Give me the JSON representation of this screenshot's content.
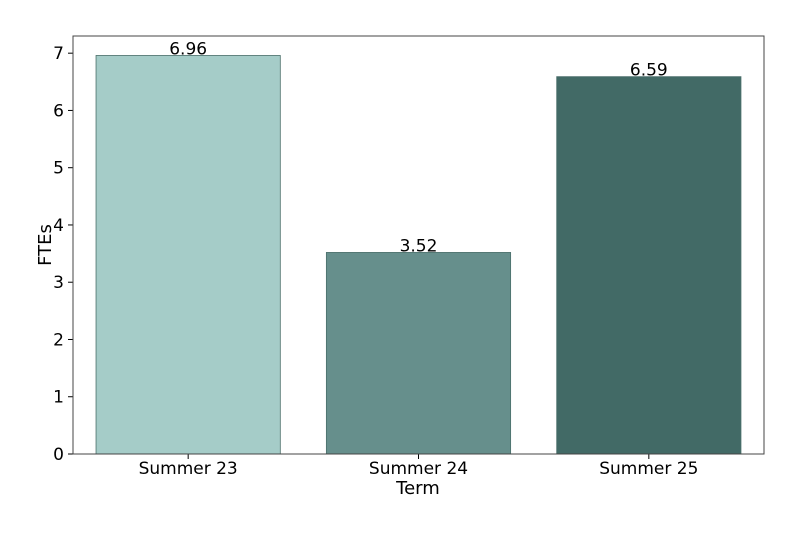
{
  "chart_data": {
    "type": "bar",
    "title": "",
    "xlabel": "Term",
    "ylabel": "FTEs",
    "categories": [
      "Summer 23",
      "Summer 24",
      "Summer 25"
    ],
    "values": [
      6.96,
      3.52,
      6.59
    ],
    "value_labels": [
      "6.96",
      "3.52",
      "6.59"
    ],
    "bar_colors": [
      "#a5ccc8",
      "#668f8c",
      "#426a66"
    ],
    "bar_edge_color": "#4a6e6a",
    "ylim": [
      0,
      7.3
    ],
    "yticks": [
      0,
      1,
      2,
      3,
      4,
      5,
      6,
      7
    ],
    "grid": false,
    "legend": "none"
  }
}
